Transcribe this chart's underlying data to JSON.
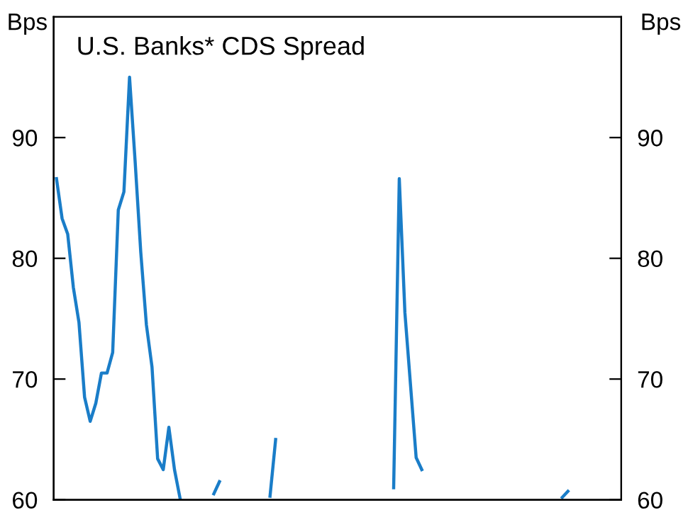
{
  "chart_data": {
    "type": "line",
    "title": "U.S. Banks* CDS Spread",
    "ylabel": "Bps",
    "y2label": "Bps",
    "categories": [
      null,
      null,
      null,
      null,
      null,
      null,
      null,
      null,
      null,
      null,
      null,
      null,
      null,
      null,
      null,
      null,
      null,
      null,
      null,
      null,
      null,
      null,
      null,
      null,
      null,
      null,
      null,
      null,
      null,
      null,
      null,
      null,
      null,
      null,
      null,
      null,
      null,
      null,
      null,
      null,
      null,
      null,
      null,
      null,
      null,
      null,
      null,
      null,
      null,
      null,
      null,
      null,
      null,
      null,
      null,
      null,
      null,
      null,
      null,
      null,
      null,
      null,
      null,
      null,
      null,
      null,
      null,
      null,
      null,
      null,
      null,
      null,
      null,
      null,
      null,
      null,
      null,
      null,
      null,
      null,
      null,
      null,
      null,
      null,
      null,
      null,
      null,
      null,
      null,
      null,
      null,
      null,
      null,
      null,
      null,
      null,
      null,
      null,
      null,
      null,
      null
    ],
    "series": [
      {
        "color": "#1a7dc8",
        "values": [
          86.6,
          83.3,
          82.0,
          77.6,
          74.7,
          68.5,
          66.5,
          68.0,
          70.5,
          70.5,
          72.2,
          84.0,
          85.5,
          95.0,
          88.0,
          80.5,
          74.5,
          71.0,
          63.4,
          62.5,
          66.0,
          62.5,
          60.1,
          null,
          null,
          null,
          null,
          null,
          60.5,
          61.5,
          null,
          null,
          null,
          null,
          null,
          null,
          null,
          null,
          60.3,
          65.0,
          null,
          null,
          null,
          null,
          null,
          null,
          null,
          null,
          null,
          null,
          null,
          null,
          null,
          null,
          null,
          null,
          null,
          null,
          null,
          null,
          61.0,
          86.6,
          75.5,
          69.5,
          63.5,
          62.5,
          null,
          null,
          null,
          null,
          null,
          null,
          null,
          null,
          null,
          null,
          null,
          null,
          null,
          null,
          null,
          null,
          null,
          null,
          null,
          null,
          null,
          null,
          null,
          null,
          60.2,
          60.7,
          null,
          null,
          null,
          null,
          null,
          null,
          null,
          null,
          null
        ]
      }
    ],
    "ylim": [
      60,
      100
    ],
    "yticks": [
      60,
      70,
      80,
      90
    ],
    "y2lim": [
      60,
      100
    ],
    "y2ticks": [
      60,
      70,
      80,
      90
    ],
    "tick_labels": "y",
    "grid": false,
    "legend": false,
    "marker": "none",
    "line_style": "solid"
  }
}
